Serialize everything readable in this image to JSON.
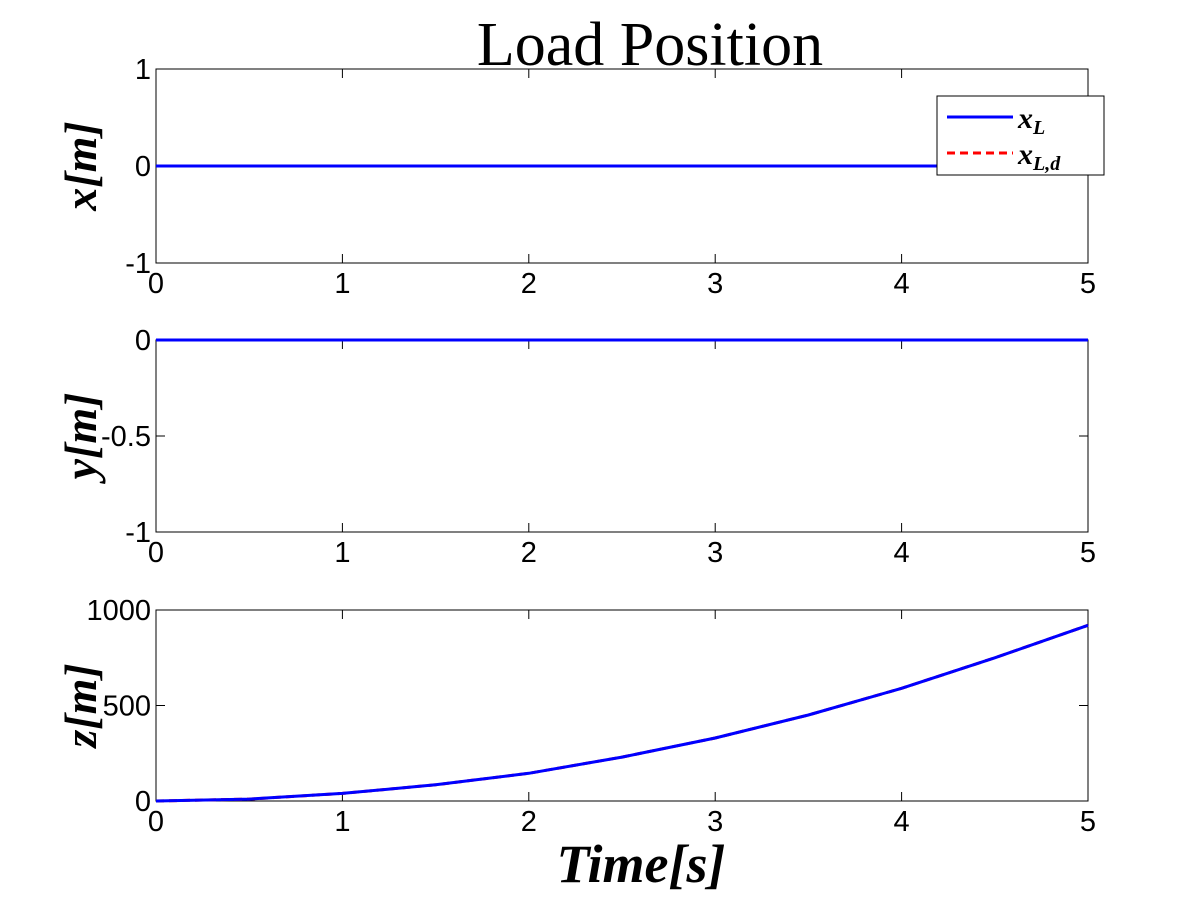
{
  "title": "Load Position",
  "x_axis_label": "Time[s]",
  "legend": [
    {
      "label": "x",
      "sub": "L",
      "color": "#0000ff",
      "style": "solid"
    },
    {
      "label": "x",
      "sub": "L,d",
      "color": "#ff0000",
      "style": "dashed"
    }
  ],
  "chart_data": [
    {
      "type": "line",
      "ylabel": "x[m]",
      "xlim": [
        0,
        5
      ],
      "ylim": [
        -1,
        1
      ],
      "xticks": [
        "0",
        "1",
        "2",
        "3",
        "4",
        "5"
      ],
      "yticks": [
        {
          "v": 1,
          "label": "1"
        },
        {
          "v": 0,
          "label": "0"
        },
        {
          "v": -1,
          "label": "-1"
        }
      ],
      "series": [
        {
          "name": "x_L",
          "color": "#0000ff",
          "style": "solid",
          "x": [
            0,
            1,
            2,
            3,
            4,
            5
          ],
          "y": [
            0,
            0,
            0,
            0,
            0,
            0
          ]
        },
        {
          "name": "x_L,d",
          "color": "#ff0000",
          "style": "dashed",
          "x": [
            0,
            1,
            2,
            3,
            4,
            5
          ],
          "y": [
            0,
            0,
            0,
            0,
            0,
            0
          ]
        }
      ]
    },
    {
      "type": "line",
      "ylabel": "y[m]",
      "xlim": [
        0,
        5
      ],
      "ylim": [
        -1,
        0
      ],
      "xticks": [
        "0",
        "1",
        "2",
        "3",
        "4",
        "5"
      ],
      "yticks": [
        {
          "v": 0,
          "label": "0"
        },
        {
          "v": -0.5,
          "label": "-0.5"
        },
        {
          "v": -1,
          "label": "-1"
        }
      ],
      "series": [
        {
          "name": "x_L",
          "color": "#0000ff",
          "style": "solid",
          "x": [
            0,
            1,
            2,
            3,
            4,
            5
          ],
          "y": [
            0,
            0,
            0,
            0,
            0,
            0
          ]
        },
        {
          "name": "x_L,d",
          "color": "#ff0000",
          "style": "dashed",
          "x": [
            0,
            1,
            2,
            3,
            4,
            5
          ],
          "y": [
            0,
            0,
            0,
            0,
            0,
            0
          ]
        }
      ]
    },
    {
      "type": "line",
      "ylabel": "z[m]",
      "xlim": [
        0,
        5
      ],
      "ylim": [
        0,
        1000
      ],
      "xticks": [
        "0",
        "1",
        "2",
        "3",
        "4",
        "5"
      ],
      "yticks": [
        {
          "v": 1000,
          "label": "1000"
        },
        {
          "v": 500,
          "label": "500"
        },
        {
          "v": 0,
          "label": "0"
        }
      ],
      "series": [
        {
          "name": "x_L",
          "color": "#0000ff",
          "style": "solid",
          "x": [
            0,
            0.5,
            1,
            1.5,
            2,
            2.5,
            3,
            3.5,
            4,
            4.5,
            5
          ],
          "y": [
            0,
            10,
            40,
            85,
            145,
            230,
            330,
            450,
            590,
            750,
            920
          ]
        },
        {
          "name": "x_L,d",
          "color": "#ff0000",
          "style": "dashed",
          "x": [
            0,
            0.5,
            1,
            1.5,
            2,
            2.5,
            3,
            3.5,
            4,
            4.5,
            5
          ],
          "y": [
            0,
            10,
            40,
            85,
            145,
            230,
            330,
            450,
            590,
            750,
            920
          ]
        }
      ]
    }
  ]
}
